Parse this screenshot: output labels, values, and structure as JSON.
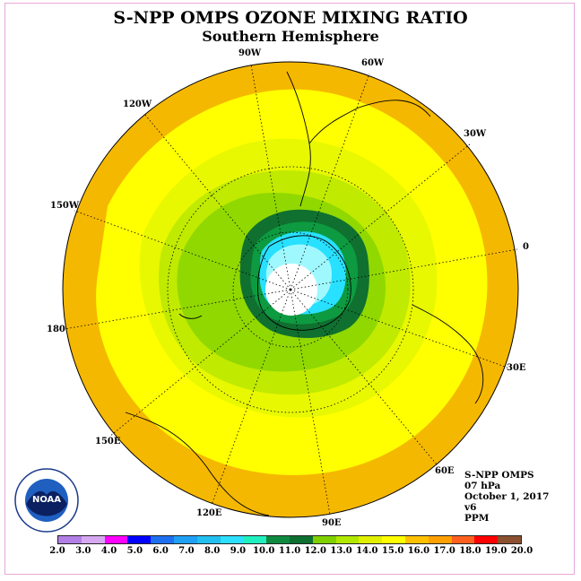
{
  "title": "S-NPP OMPS OZONE MIXING RATIO",
  "subtitle": "Southern Hemisphere",
  "longitude_labels": [
    "90W",
    "60W",
    "30W",
    "0",
    "30E",
    "60E",
    "90E",
    "120E",
    "150E",
    "180",
    "150W",
    "120W"
  ],
  "info": {
    "instrument": "S-NPP OMPS",
    "level": "07 hPa",
    "date": "October 1, 2017",
    "version": "v6",
    "units": "PPM"
  },
  "colorbar": {
    "ticks": [
      "2.0",
      "3.0",
      "4.0",
      "5.0",
      "6.0",
      "7.0",
      "8.0",
      "9.0",
      "10.0",
      "11.0",
      "12.0",
      "13.0",
      "14.0",
      "15.0",
      "16.0",
      "17.0",
      "18.0",
      "19.0",
      "20.0"
    ],
    "colors": [
      "#b27fe6",
      "#d7a8f2",
      "#ff00ff",
      "#0000ff",
      "#1e70f0",
      "#1fa0f5",
      "#22bff0",
      "#2de0ff",
      "#20f0c0",
      "#108a40",
      "#0d6f30",
      "#80d000",
      "#b0e800",
      "#e0f000",
      "#ffff00",
      "#ffc000",
      "#ffa000",
      "#ff6020",
      "#ff0000",
      "#8a5030"
    ]
  },
  "logo_text": "NOAA",
  "colors": {
    "outer": "#f5b800",
    "yellow": "#ffff00",
    "light_yellow": "#e8f800",
    "yellow_green": "#c0ea00",
    "green": "#90d800",
    "dark_green": "#0f7030",
    "mid_green": "#0d9a40",
    "cyan": "#28e0ff",
    "light_cyan": "#a0f8ff"
  }
}
